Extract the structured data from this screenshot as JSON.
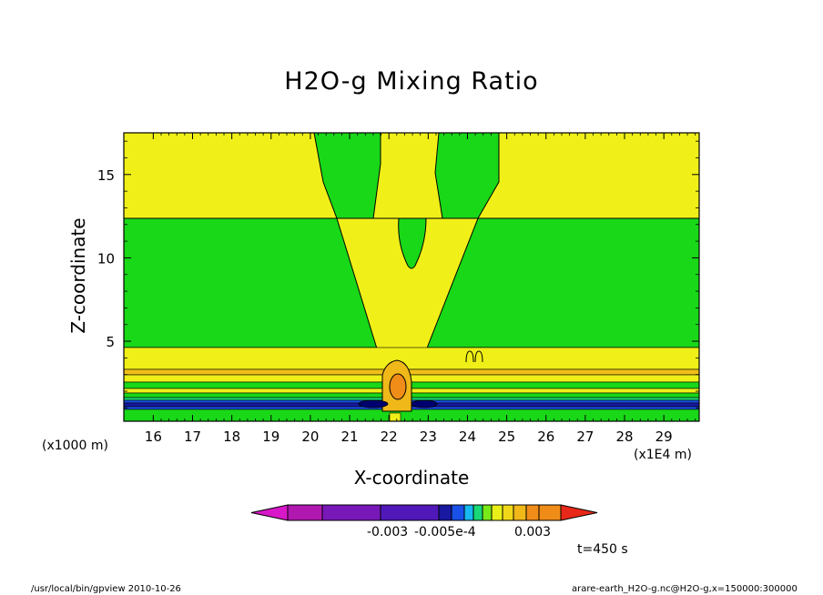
{
  "chart_data": {
    "type": "heatmap",
    "title": "H2O-g Mixing Ratio",
    "xlabel": "X-coordinate",
    "ylabel": "Z-coordinate",
    "x_unit": "(x1E4 m)",
    "y_unit": "(x1000 m)",
    "xlim": [
      15.25,
      29.9
    ],
    "ylim": [
      0.2,
      17.5
    ],
    "x_ticks": [
      "16",
      "17",
      "18",
      "19",
      "20",
      "21",
      "22",
      "23",
      "24",
      "25",
      "26",
      "27",
      "28",
      "29"
    ],
    "y_ticks": [
      "5",
      "10",
      "15"
    ],
    "colorbar": {
      "colors": [
        "#d818c8",
        "#b018b0",
        "#7818b8",
        "#5018b8",
        "#1818a0",
        "#1850e8",
        "#18b8f0",
        "#18d878",
        "#78e818",
        "#e8f018",
        "#f0d818",
        "#f0b818",
        "#f08c18",
        "#e82818"
      ],
      "labels": [
        "-0.003",
        "-0.005e-4",
        "0.003"
      ]
    },
    "time_label": "t=450 s"
  },
  "footer": {
    "left": "/usr/local/bin/gpview  2010-10-26",
    "right": "arare-earth_H2O-g.nc@H2O-g,x=150000:300000"
  }
}
